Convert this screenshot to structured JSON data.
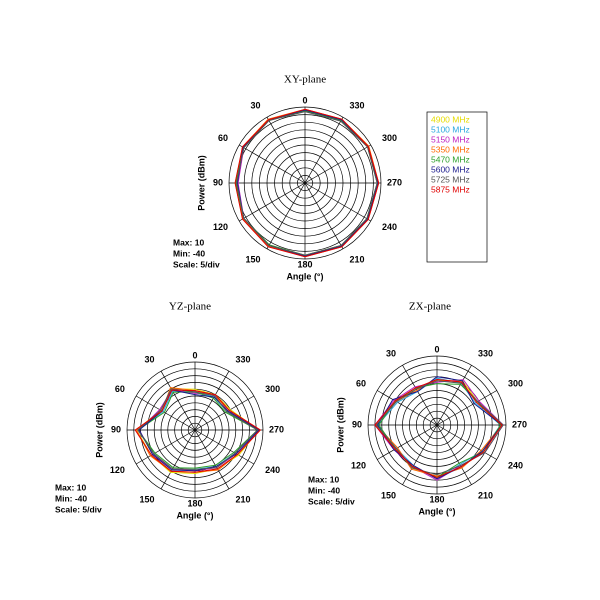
{
  "chart_data": [
    {
      "type": "polar",
      "title": "XY-plane",
      "xlabel": "Angle  (°)",
      "ylabel": "Power  (dBm)",
      "annotations": [
        "Max: 10",
        "Min: -40",
        "Scale: 5/div"
      ],
      "legend": true,
      "rlim": [
        -40,
        10
      ],
      "rticks": [
        -40,
        -35,
        -30,
        -25,
        -20,
        -15,
        -10,
        -5,
        0,
        5,
        10
      ],
      "thetaticks": [
        0,
        30,
        60,
        90,
        120,
        150,
        180,
        210,
        240,
        270,
        300,
        330
      ],
      "angles": [
        0,
        30,
        60,
        90,
        120,
        150,
        180,
        210,
        240,
        270,
        300,
        330
      ],
      "series": [
        {
          "name": "4900 MHz",
          "color": "#e6dc00",
          "values": [
            8,
            8,
            7,
            6,
            7,
            8,
            8,
            8,
            7,
            8,
            8,
            8
          ]
        },
        {
          "name": "5100 MHz",
          "color": "#2aa8e0",
          "values": [
            7.5,
            8,
            7,
            5,
            7,
            8,
            8,
            7.5,
            7,
            7.5,
            8,
            8
          ]
        },
        {
          "name": "5150 MHz",
          "color": "#c020c0",
          "values": [
            8,
            7.5,
            6.5,
            4,
            6.5,
            7.5,
            8,
            8,
            7.5,
            8,
            7.5,
            8
          ]
        },
        {
          "name": "5350 MHz",
          "color": "#ff6a00",
          "values": [
            8.5,
            8.5,
            7.5,
            5,
            7,
            8,
            8.5,
            8.5,
            8,
            8.5,
            8.5,
            8.5
          ]
        },
        {
          "name": "5470 MHz",
          "color": "#2ca02c",
          "values": [
            7.5,
            7.5,
            6.5,
            5.5,
            6.5,
            7,
            7.5,
            7.5,
            7,
            7.5,
            7.5,
            7.5
          ]
        },
        {
          "name": "5600 MHz",
          "color": "#1a1a8c",
          "values": [
            8,
            8,
            7,
            4.5,
            6.5,
            7.5,
            8,
            8,
            7.5,
            8,
            8,
            8
          ]
        },
        {
          "name": "5725 MHz",
          "color": "#555555",
          "values": [
            7,
            7.5,
            6.5,
            5,
            6.5,
            7.5,
            7.5,
            7.5,
            7,
            7.5,
            7.5,
            7
          ]
        },
        {
          "name": "5875 MHz",
          "color": "#e00000",
          "values": [
            8.5,
            8,
            7.5,
            6,
            7.5,
            8.5,
            8.5,
            8.5,
            8,
            8.5,
            8,
            8.5
          ]
        }
      ]
    },
    {
      "type": "polar",
      "title": "YZ-plane",
      "xlabel": "Angle  (°)",
      "ylabel": "Power  (dBm)",
      "annotations": [
        "Max: 10",
        "Min: -40",
        "Scale: 5/div"
      ],
      "rlim": [
        -40,
        10
      ],
      "rticks": [
        -40,
        -35,
        -30,
        -25,
        -20,
        -15,
        -10,
        -5,
        0,
        5,
        10
      ],
      "thetaticks": [
        0,
        30,
        60,
        90,
        120,
        150,
        180,
        210,
        240,
        270,
        300,
        330
      ],
      "angles": [
        0,
        30,
        60,
        90,
        120,
        150,
        180,
        210,
        240,
        270,
        300,
        330
      ],
      "series": [
        {
          "color": "#e6dc00",
          "values": [
            -10,
            -5,
            -11,
            3,
            -3,
            -4,
            -8,
            -7,
            -3,
            7,
            -10,
            -10
          ]
        },
        {
          "color": "#2aa8e0",
          "values": [
            -12,
            -7,
            -13,
            2,
            -5,
            -6,
            -11,
            -9,
            -6,
            6,
            -13,
            -12
          ]
        },
        {
          "color": "#c020c0",
          "values": [
            -13,
            -6,
            -10,
            1,
            -4,
            -7,
            -10,
            -8,
            -5,
            7,
            -12,
            -10
          ]
        },
        {
          "color": "#ff6a00",
          "values": [
            -11,
            -4,
            -12,
            3,
            -2,
            -5,
            -9,
            -6,
            -4,
            8,
            -11,
            -11
          ]
        },
        {
          "color": "#2ca02c",
          "values": [
            -12,
            -8,
            -14,
            2,
            -6,
            -8,
            -12,
            -10,
            -7,
            6,
            -14,
            -13
          ]
        },
        {
          "color": "#1a1a8c",
          "values": [
            -14,
            -6,
            -12,
            1,
            -4,
            -6,
            -10,
            -9,
            -5,
            7,
            -12,
            -12
          ]
        },
        {
          "color": "#555555",
          "values": [
            -12,
            -5,
            -11,
            2,
            -5,
            -7,
            -11,
            -8,
            -6,
            6,
            -13,
            -11
          ]
        },
        {
          "color": "#e00000",
          "values": [
            -11,
            -6,
            -12,
            4,
            -3,
            -5,
            -9,
            -7,
            -4,
            8,
            -11,
            -10
          ]
        }
      ]
    },
    {
      "type": "polar",
      "title": "ZX-plane",
      "xlabel": "Angle  (°)",
      "ylabel": "Power  (dBm)",
      "annotations": [
        "Max: 10",
        "Min: -40",
        "Scale: 5/div"
      ],
      "rlim": [
        -40,
        10
      ],
      "rticks": [
        -40,
        -35,
        -30,
        -25,
        -20,
        -15,
        -10,
        -5,
        0,
        5,
        10
      ],
      "thetaticks": [
        0,
        30,
        60,
        90,
        120,
        150,
        180,
        210,
        240,
        270,
        300,
        330
      ],
      "angles": [
        0,
        30,
        60,
        90,
        120,
        150,
        180,
        210,
        240,
        270,
        300,
        330
      ],
      "series": [
        {
          "color": "#e6dc00",
          "values": [
            -8,
            -10,
            -5,
            4,
            -5,
            -4,
            -2,
            -5,
            -1,
            7,
            -6,
            -3
          ]
        },
        {
          "color": "#2aa8e0",
          "values": [
            -6,
            -12,
            -7,
            3,
            -6,
            -6,
            -1,
            -7,
            -2,
            6,
            -8,
            -5
          ]
        },
        {
          "color": "#c020c0",
          "values": [
            -9,
            -8,
            -4,
            5,
            -4,
            -5,
            0,
            -6,
            0,
            8,
            -5,
            -2
          ]
        },
        {
          "color": "#ff6a00",
          "values": [
            -7,
            -11,
            -6,
            4,
            -7,
            -3,
            -3,
            -4,
            -3,
            7,
            -7,
            -4
          ]
        },
        {
          "color": "#2ca02c",
          "values": [
            -10,
            -9,
            -5,
            2,
            -5,
            -5,
            -2,
            -8,
            -1,
            6,
            -6,
            -6
          ]
        },
        {
          "color": "#1a1a8c",
          "values": [
            -5,
            -12,
            -3,
            3,
            -4,
            -6,
            -1,
            -5,
            -2,
            7,
            -9,
            -3
          ]
        },
        {
          "color": "#555555",
          "values": [
            -8,
            -10,
            -6,
            4,
            -6,
            -4,
            -4,
            -6,
            0,
            8,
            -6,
            -5
          ]
        },
        {
          "color": "#e00000",
          "values": [
            -7,
            -9,
            -5,
            5,
            -5,
            -5,
            -2,
            -5,
            -1,
            7,
            -7,
            -4
          ]
        }
      ]
    }
  ]
}
